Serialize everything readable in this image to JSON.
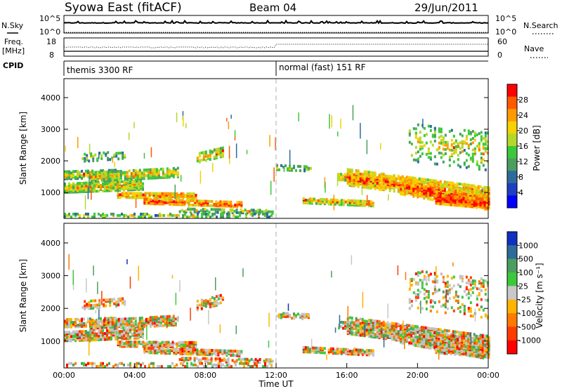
{
  "header": {
    "station": "Syowa East (fitACF)",
    "beam": "Beam 04",
    "date": "29/Jun/2011"
  },
  "status_panels": {
    "nsky_label": "N.Sky",
    "nsky_ticks": [
      "10^5",
      "10^0"
    ],
    "nsearch_label": "N.Search",
    "nsearch_ticks": [
      "10^5",
      "10^0"
    ],
    "freq_label_1": "Freq.",
    "freq_label_2": "[MHz]",
    "freq_ticks": [
      "18",
      "8"
    ],
    "nave_label": "Nave",
    "nave_ticks": [
      "60",
      "0"
    ],
    "cpid_label": "CPID",
    "cpid_modes": [
      "themis 3300 RF",
      "normal (fast) 151 RF"
    ],
    "cpid_switch_hour": 12
  },
  "chart_data": [
    {
      "type": "heatmap",
      "panel": "power",
      "ylabel": "Slant Range [km]",
      "ylim": [
        180,
        4600
      ],
      "y_ticks": [
        "1000",
        "2000",
        "3000",
        "4000"
      ],
      "y_tick_values": [
        1000,
        2000,
        3000,
        4000
      ],
      "colorbar_label": "Power [dB]",
      "colorbar_ticks": [
        "4",
        "8",
        "12",
        "16",
        "20",
        "24",
        "28"
      ],
      "colorbar_colors": [
        "#0000ff",
        "#1e3fbf",
        "#2e6b9a",
        "#4a9e5f",
        "#3cc83c",
        "#b4d82a",
        "#f5d200",
        "#ff9a00",
        "#ff5a00",
        "#ff0000"
      ],
      "grid": false
    },
    {
      "type": "heatmap",
      "panel": "velocity",
      "xlabel": "Time UT",
      "ylabel": "Slant Range [km]",
      "xlim": [
        0,
        24
      ],
      "x_ticks": [
        "00:00",
        "04:00",
        "08:00",
        "12:00",
        "16:00",
        "20:00",
        "00:00"
      ],
      "x_tick_values": [
        0,
        4,
        8,
        12,
        16,
        20,
        24
      ],
      "ylim": [
        180,
        4600
      ],
      "y_ticks": [
        "1000",
        "2000",
        "3000",
        "4000"
      ],
      "y_tick_values": [
        1000,
        2000,
        3000,
        4000
      ],
      "colorbar_label": "Velocity [m s⁻¹]",
      "colorbar_ticks": [
        "1000",
        "500",
        "100",
        "25",
        "-25",
        "-100",
        "-500",
        "-1000"
      ],
      "colorbar_colors": [
        "#1030c0",
        "#2e6b9a",
        "#4a9e5f",
        "#3cc83c",
        "#c8c8c8",
        "#ffb400",
        "#ff7a00",
        "#ff3c00",
        "#ff0000"
      ],
      "ground_scatter_color": "#bebebe",
      "grid": false
    }
  ]
}
